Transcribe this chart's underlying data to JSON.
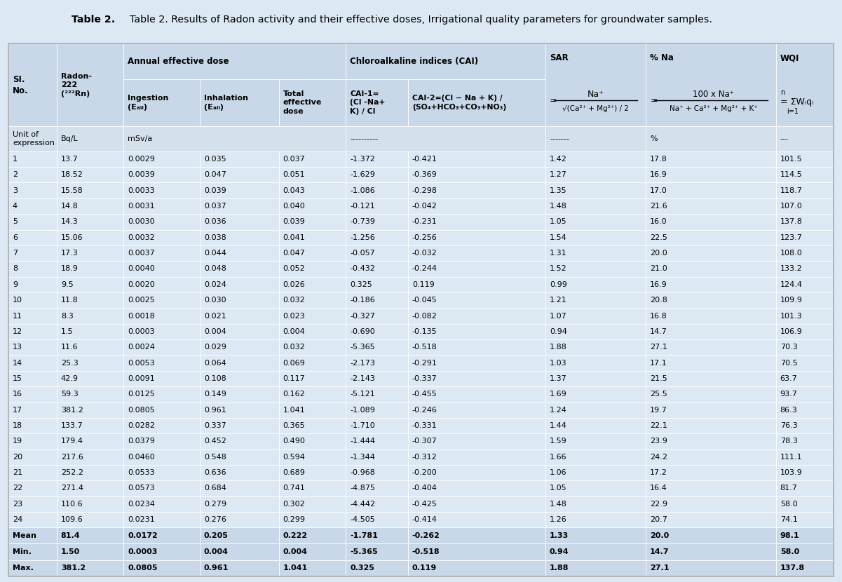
{
  "title_bold": "Table 2.",
  "title_rest": " Results of Radon activity and their effective doses, Irrigational quality parameters for groundwater samples.",
  "data_rows": [
    [
      "1",
      "13.7",
      "0.0029",
      "0.035",
      "0.037",
      "-1.372",
      "-0.421",
      "1.42",
      "17.8",
      "101.5"
    ],
    [
      "2",
      "18.52",
      "0.0039",
      "0.047",
      "0.051",
      "-1.629",
      "-0.369",
      "1.27",
      "16.9",
      "114.5"
    ],
    [
      "3",
      "15.58",
      "0.0033",
      "0.039",
      "0.043",
      "-1.086",
      "-0.298",
      "1.35",
      "17.0",
      "118.7"
    ],
    [
      "4",
      "14.8",
      "0.0031",
      "0.037",
      "0.040",
      "-0.121",
      "-0.042",
      "1.48",
      "21.6",
      "107.0"
    ],
    [
      "5",
      "14.3",
      "0.0030",
      "0.036",
      "0.039",
      "-0.739",
      "-0.231",
      "1.05",
      "16.0",
      "137.8"
    ],
    [
      "6",
      "15.06",
      "0.0032",
      "0.038",
      "0.041",
      "-1.256",
      "-0.256",
      "1.54",
      "22.5",
      "123.7"
    ],
    [
      "7",
      "17.3",
      "0.0037",
      "0.044",
      "0.047",
      "-0.057",
      "-0.032",
      "1.31",
      "20.0",
      "108.0"
    ],
    [
      "8",
      "18.9",
      "0.0040",
      "0.048",
      "0.052",
      "-0.432",
      "-0.244",
      "1.52",
      "21.0",
      "133.2"
    ],
    [
      "9",
      "9.5",
      "0.0020",
      "0.024",
      "0.026",
      "0.325",
      "0.119",
      "0.99",
      "16.9",
      "124.4"
    ],
    [
      "10",
      "11.8",
      "0.0025",
      "0.030",
      "0.032",
      "-0.186",
      "-0.045",
      "1.21",
      "20.8",
      "109.9"
    ],
    [
      "11",
      "8.3",
      "0.0018",
      "0.021",
      "0.023",
      "-0.327",
      "-0.082",
      "1.07",
      "16.8",
      "101.3"
    ],
    [
      "12",
      "1.5",
      "0.0003",
      "0.004",
      "0.004",
      "-0.690",
      "-0.135",
      "0.94",
      "14.7",
      "106.9"
    ],
    [
      "13",
      "11.6",
      "0.0024",
      "0.029",
      "0.032",
      "-5.365",
      "-0.518",
      "1.88",
      "27.1",
      "70.3"
    ],
    [
      "14",
      "25.3",
      "0.0053",
      "0.064",
      "0.069",
      "-2.173",
      "-0.291",
      "1.03",
      "17.1",
      "70.5"
    ],
    [
      "15",
      "42.9",
      "0.0091",
      "0.108",
      "0.117",
      "-2.143",
      "-0.337",
      "1.37",
      "21.5",
      "63.7"
    ],
    [
      "16",
      "59.3",
      "0.0125",
      "0.149",
      "0.162",
      "-5.121",
      "-0.455",
      "1.69",
      "25.5",
      "93.7"
    ],
    [
      "17",
      "381.2",
      "0.0805",
      "0.961",
      "1.041",
      "-1.089",
      "-0.246",
      "1.24",
      "19.7",
      "86.3"
    ],
    [
      "18",
      "133.7",
      "0.0282",
      "0.337",
      "0.365",
      "-1.710",
      "-0.331",
      "1.44",
      "22.1",
      "76.3"
    ],
    [
      "19",
      "179.4",
      "0.0379",
      "0.452",
      "0.490",
      "-1.444",
      "-0.307",
      "1.59",
      "23.9",
      "78.3"
    ],
    [
      "20",
      "217.6",
      "0.0460",
      "0.548",
      "0.594",
      "-1.344",
      "-0.312",
      "1.66",
      "24.2",
      "111.1"
    ],
    [
      "21",
      "252.2",
      "0.0533",
      "0.636",
      "0.689",
      "-0.968",
      "-0.200",
      "1.06",
      "17.2",
      "103.9"
    ],
    [
      "22",
      "271.4",
      "0.0573",
      "0.684",
      "0.741",
      "-4.875",
      "-0.404",
      "1.05",
      "16.4",
      "81.7"
    ],
    [
      "23",
      "110.6",
      "0.0234",
      "0.279",
      "0.302",
      "-4.442",
      "-0.425",
      "1.48",
      "22.9",
      "58.0"
    ],
    [
      "24",
      "109.6",
      "0.0231",
      "0.276",
      "0.299",
      "-4.505",
      "-0.414",
      "1.26",
      "20.7",
      "74.1"
    ],
    [
      "Mean",
      "81.4",
      "0.0172",
      "0.205",
      "0.222",
      "-1.781",
      "-0.262",
      "1.33",
      "20.0",
      "98.1"
    ],
    [
      "Min.",
      "1.50",
      "0.0003",
      "0.004",
      "0.004",
      "-5.365",
      "-0.518",
      "0.94",
      "14.7",
      "58.0"
    ],
    [
      "Max.",
      "381.2",
      "0.0805",
      "0.961",
      "1.041",
      "0.325",
      "0.119",
      "1.88",
      "27.1",
      "137.8"
    ]
  ],
  "bg_header": "#c8d8e8",
  "bg_unit": "#d4e0ec",
  "bg_data": "#dce8f4",
  "bg_summary": "#c8d8e8",
  "fig_bg": "#dce8f4",
  "border_color": "#aaaaaa",
  "white": "#ffffff"
}
